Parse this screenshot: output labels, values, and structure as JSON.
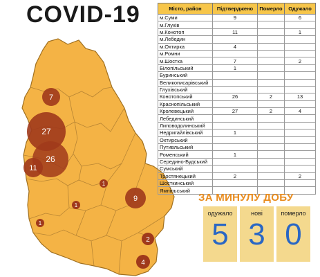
{
  "title": "COVID-19",
  "table": {
    "headers": [
      "Місто, район",
      "Підтверджено",
      "Померло",
      "Одужало"
    ],
    "rows": [
      [
        "м.Суми",
        "9",
        "",
        "6"
      ],
      [
        "м.Глухів",
        "",
        "",
        ""
      ],
      [
        "м.Конотоп",
        "11",
        "",
        "1"
      ],
      [
        "м.Лебедин",
        "",
        "",
        ""
      ],
      [
        "м.Охтирка",
        "4",
        "",
        ""
      ],
      [
        "м.Ромни",
        "",
        "",
        ""
      ],
      [
        "м.Шостка",
        "7",
        "",
        "2"
      ],
      [
        "Білопільський",
        "1",
        "",
        ""
      ],
      [
        "Буринський",
        "",
        "",
        ""
      ],
      [
        "Великописарівський",
        "",
        "",
        ""
      ],
      [
        "Глухівський",
        "",
        "",
        ""
      ],
      [
        "Конотопський",
        "26",
        "2",
        "13"
      ],
      [
        "Краснопільський",
        "",
        "",
        ""
      ],
      [
        "Кролевецький",
        "27",
        "2",
        "4"
      ],
      [
        "Лебединський",
        "",
        "",
        ""
      ],
      [
        "Липоводолинський",
        "",
        "",
        ""
      ],
      [
        "Недригайлівський",
        "1",
        "",
        ""
      ],
      [
        "Охтирський",
        "",
        "",
        ""
      ],
      [
        "Путивльський",
        "",
        "",
        ""
      ],
      [
        "Роменський",
        "1",
        "",
        ""
      ],
      [
        "Середино-Будський",
        "",
        "",
        ""
      ],
      [
        "Сумський",
        "",
        "",
        ""
      ],
      [
        "Тростянецький",
        "2",
        "",
        "2"
      ],
      [
        "Шосткинський",
        "",
        "",
        ""
      ],
      [
        "Ямпільський",
        "",
        "",
        ""
      ]
    ]
  },
  "map": {
    "fill_color": "#f4b345",
    "border_color": "#a07020",
    "bubble_color": "#a0391b",
    "markers": [
      {
        "label": "7"
      },
      {
        "label": "27"
      },
      {
        "label": "26"
      },
      {
        "label": "11"
      },
      {
        "label": "1"
      },
      {
        "label": "1"
      },
      {
        "label": "9"
      },
      {
        "label": "1"
      },
      {
        "label": "2"
      },
      {
        "label": "4"
      }
    ]
  },
  "daily": {
    "title": "ЗА МИНУЛУ ДОБУ",
    "stats": [
      {
        "label": "одужало",
        "value": "5"
      },
      {
        "label": "нові",
        "value": "3"
      },
      {
        "label": "померло",
        "value": "0"
      }
    ]
  }
}
